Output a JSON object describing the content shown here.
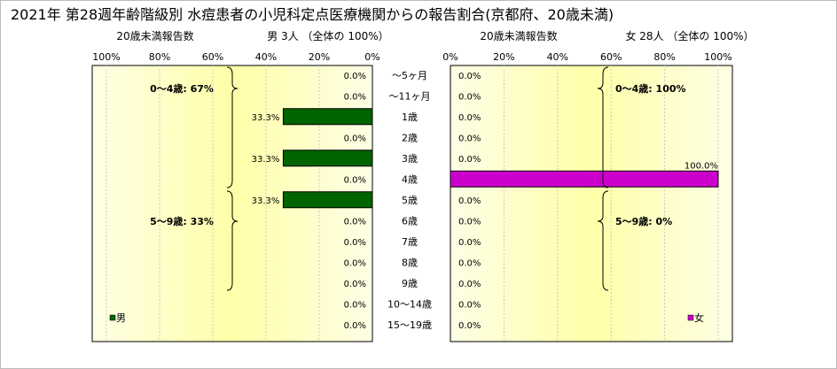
{
  "title": "2021年 第28週年齢階級別 水痘患者の小児科定点医療機関からの報告割合(京都府、20歳未満)",
  "chart_data": [
    {
      "type": "bar",
      "orientation": "horizontal",
      "direction": "right-to-left",
      "axis_header": "20歳未満報告数",
      "header": "男  3人 （全体の  100%）",
      "xlim": [
        0,
        100
      ],
      "tick_labels": [
        "100%",
        "80%",
        "60%",
        "40%",
        "20%",
        "0%"
      ],
      "color": "#006400",
      "legend": "男",
      "legend_position": "bottom-left",
      "groups": [
        {
          "label": "0～4歳: 67%"
        },
        {
          "label": "5～9歳: 33%"
        }
      ],
      "values": [
        0,
        0,
        33.3,
        0,
        33.3,
        0,
        33.3,
        0,
        0,
        0,
        0,
        0,
        0
      ],
      "value_labels": [
        "0.0%",
        "0.0%",
        "33.3%",
        "0.0%",
        "33.3%",
        "0.0%",
        "33.3%",
        "0.0%",
        "0.0%",
        "0.0%",
        "0.0%",
        "0.0%",
        "0.0%"
      ]
    },
    {
      "type": "bar",
      "orientation": "horizontal",
      "direction": "left-to-right",
      "axis_header": "20歳未満報告数",
      "header": "女  28人 （全体の  100%）",
      "xlim": [
        0,
        100
      ],
      "tick_labels": [
        "0%",
        "20%",
        "40%",
        "60%",
        "80%",
        "100%"
      ],
      "color": "#CC00CC",
      "legend": "女",
      "legend_position": "bottom-right",
      "groups": [
        {
          "label": "0～4歳: 100%"
        },
        {
          "label": "5～9歳: 0%"
        }
      ],
      "values": [
        0,
        0,
        0,
        0,
        0,
        100,
        0,
        0,
        0,
        0,
        0,
        0,
        0
      ],
      "value_labels": [
        "0.0%",
        "0.0%",
        "0.0%",
        "0.0%",
        "0.0%",
        "100.0%",
        "0.0%",
        "0.0%",
        "0.0%",
        "0.0%",
        "0.0%",
        "0.0%",
        "0.0%"
      ]
    }
  ],
  "categories": [
    "～5ヶ月",
    "～11ヶ月",
    "1歳",
    "2歳",
    "3歳",
    "4歳",
    "5歳",
    "6歳",
    "7歳",
    "8歳",
    "9歳",
    "10～14歳",
    "15～19歳"
  ]
}
